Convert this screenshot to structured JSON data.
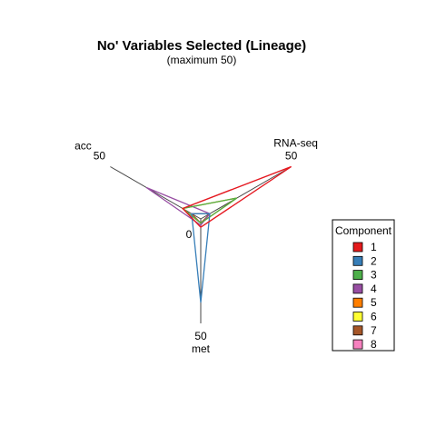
{
  "chart_data": {
    "type": "radar",
    "title": "No' Variables Selected (Lineage)",
    "subtitle": "(maximum 50)",
    "axes": [
      {
        "name": "RNA-seq",
        "max_label": "50"
      },
      {
        "name": "met",
        "max_label": "50"
      },
      {
        "name": "acc",
        "max_label": "50"
      }
    ],
    "center_label": "0",
    "max": 50,
    "legend": {
      "title": "Component",
      "position": "right"
    },
    "series": [
      {
        "name": "1",
        "color": "#E41A1C",
        "values": [
          50,
          4,
          10
        ]
      },
      {
        "name": "2",
        "color": "#377EB8",
        "values": [
          5,
          40,
          5
        ]
      },
      {
        "name": "3",
        "color": "#4DAF4A",
        "values": [
          20,
          2,
          10
        ]
      },
      {
        "name": "4",
        "color": "#984EA3",
        "values": [
          5,
          3,
          30
        ]
      },
      {
        "name": "5",
        "color": "#FF7F00",
        "values": [
          20,
          2,
          10
        ]
      },
      {
        "name": "6",
        "color": "#FFFF33",
        "values": [
          20,
          2,
          10
        ]
      },
      {
        "name": "7",
        "color": "#A65628",
        "values": [
          5,
          2,
          5
        ]
      },
      {
        "name": "8",
        "color": "#F781BF",
        "values": [
          50,
          4,
          10
        ]
      }
    ]
  }
}
